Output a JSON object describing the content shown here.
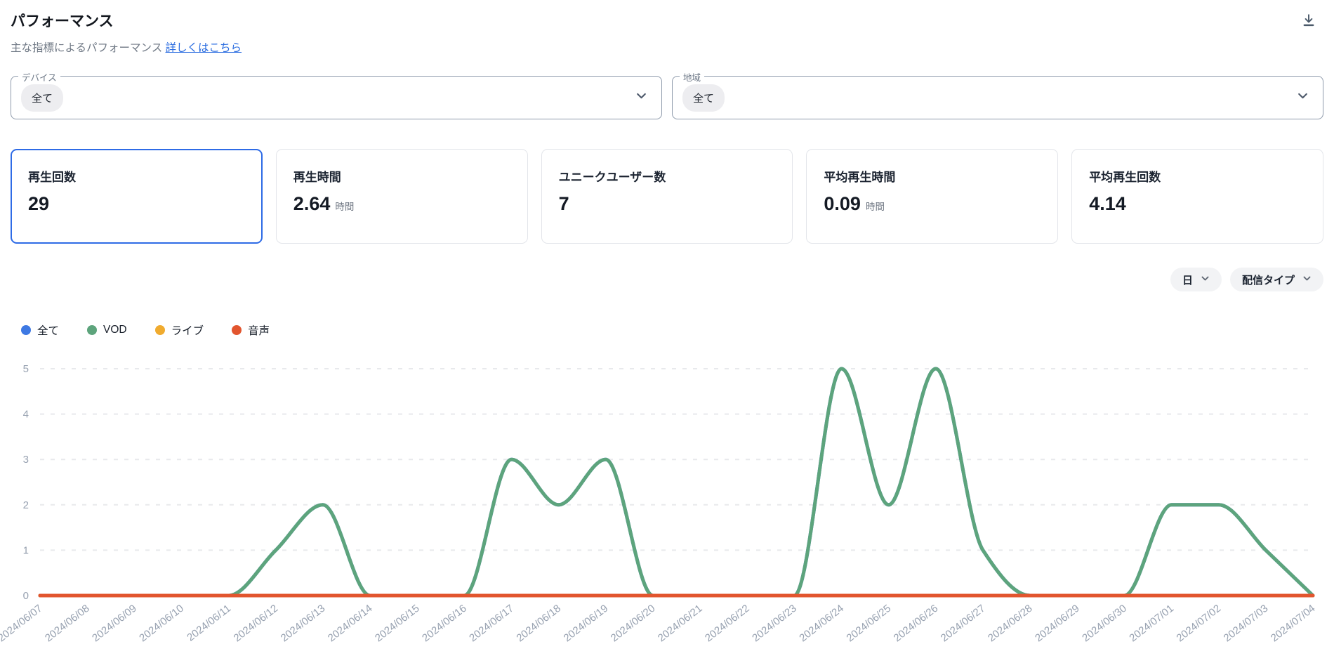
{
  "header": {
    "title": "パフォーマンス",
    "subtitle": "主な指標によるパフォーマンス",
    "link_label": "詳しくはこちら"
  },
  "filters": [
    {
      "key": "device",
      "label": "デバイス",
      "value": "全て"
    },
    {
      "key": "region",
      "label": "地域",
      "value": "全て"
    }
  ],
  "metrics": [
    {
      "key": "plays",
      "label": "再生回数",
      "value": "29",
      "unit": "",
      "selected": true
    },
    {
      "key": "play-time",
      "label": "再生時間",
      "value": "2.64",
      "unit": "時間",
      "selected": false
    },
    {
      "key": "unique-users",
      "label": "ユニークユーザー数",
      "value": "7",
      "unit": "",
      "selected": false
    },
    {
      "key": "avg-play-time",
      "label": "平均再生時間",
      "value": "0.09",
      "unit": "時間",
      "selected": false
    },
    {
      "key": "avg-plays",
      "label": "平均再生回数",
      "value": "4.14",
      "unit": "",
      "selected": false
    }
  ],
  "chart_controls": [
    {
      "key": "granularity",
      "label": "日"
    },
    {
      "key": "stream-type",
      "label": "配信タイプ"
    }
  ],
  "chart_data": {
    "type": "line",
    "title": "",
    "xlabel": "",
    "ylabel": "",
    "ylim": [
      0,
      5
    ],
    "yticks": [
      0,
      1,
      2,
      3,
      4,
      5
    ],
    "grid": "horizontal-dashed",
    "legend_position": "top-left",
    "interpolation": "monotone-cubic",
    "x": [
      "2024/06/07",
      "2024/06/08",
      "2024/06/09",
      "2024/06/10",
      "2024/06/11",
      "2024/06/12",
      "2024/06/13",
      "2024/06/14",
      "2024/06/15",
      "2024/06/16",
      "2024/06/17",
      "2024/06/18",
      "2024/06/19",
      "2024/06/20",
      "2024/06/21",
      "2024/06/22",
      "2024/06/23",
      "2024/06/24",
      "2024/06/25",
      "2024/06/26",
      "2024/06/27",
      "2024/06/28",
      "2024/06/29",
      "2024/06/30",
      "2024/07/01",
      "2024/07/02",
      "2024/07/03",
      "2024/07/04"
    ],
    "series": [
      {
        "key": "all",
        "name": "全て",
        "color": "#3e79e3",
        "values": [
          0,
          0,
          0,
          0,
          0,
          1,
          2,
          0,
          0,
          0,
          3,
          2,
          3,
          0,
          0,
          0,
          0,
          5,
          2,
          5,
          1,
          0,
          0,
          0,
          2,
          2,
          1,
          0
        ]
      },
      {
        "key": "vod",
        "name": "VOD",
        "color": "#5da47c",
        "values": [
          0,
          0,
          0,
          0,
          0,
          1,
          2,
          0,
          0,
          0,
          3,
          2,
          3,
          0,
          0,
          0,
          0,
          5,
          2,
          5,
          1,
          0,
          0,
          0,
          2,
          2,
          1,
          0
        ]
      },
      {
        "key": "live",
        "name": "ライブ",
        "color": "#f0ab2f",
        "values": [
          0,
          0,
          0,
          0,
          0,
          0,
          0,
          0,
          0,
          0,
          0,
          0,
          0,
          0,
          0,
          0,
          0,
          0,
          0,
          0,
          0,
          0,
          0,
          0,
          0,
          0,
          0,
          0
        ]
      },
      {
        "key": "audio",
        "name": "音声",
        "color": "#e2552e",
        "values": [
          0,
          0,
          0,
          0,
          0,
          0,
          0,
          0,
          0,
          0,
          0,
          0,
          0,
          0,
          0,
          0,
          0,
          0,
          0,
          0,
          0,
          0,
          0,
          0,
          0,
          0,
          0,
          0
        ]
      }
    ]
  }
}
